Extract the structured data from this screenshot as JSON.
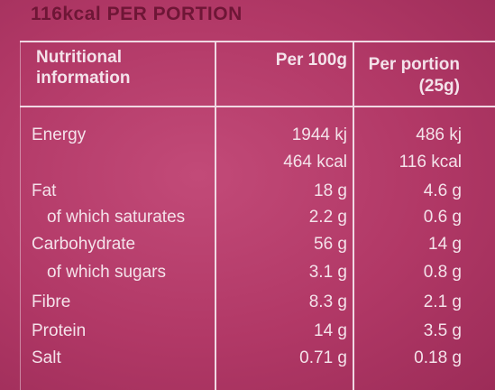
{
  "header": {
    "title": "116kcal PER PORTION"
  },
  "table": {
    "columns": [
      "Nutritional information",
      "Per 100g",
      "Per portion (25g)"
    ],
    "rows": [
      {
        "label": "Energy",
        "per_100g": [
          "1944 kj",
          "464 kcal"
        ],
        "per_portion": [
          "486 kj",
          "116 kcal"
        ]
      },
      {
        "label": "Fat",
        "per_100g": [
          "18 g"
        ],
        "per_portion": [
          "4.6 g"
        ]
      },
      {
        "label": "of which saturates",
        "indent": true,
        "per_100g": [
          "2.2 g"
        ],
        "per_portion": [
          "0.6 g"
        ]
      },
      {
        "label": "Carbohydrate",
        "per_100g": [
          "56 g"
        ],
        "per_portion": [
          "14 g"
        ]
      },
      {
        "label": "of which sugars",
        "indent": true,
        "per_100g": [
          "3.1 g"
        ],
        "per_portion": [
          "0.8 g"
        ]
      },
      {
        "label": "Fibre",
        "per_100g": [
          "8.3 g"
        ],
        "per_portion": [
          "2.1 g"
        ]
      },
      {
        "label": "Protein",
        "per_100g": [
          "14 g"
        ],
        "per_portion": [
          "3.5 g"
        ]
      },
      {
        "label": "Salt",
        "per_100g": [
          "0.71 g"
        ],
        "per_portion": [
          "0.18 g"
        ]
      }
    ]
  }
}
